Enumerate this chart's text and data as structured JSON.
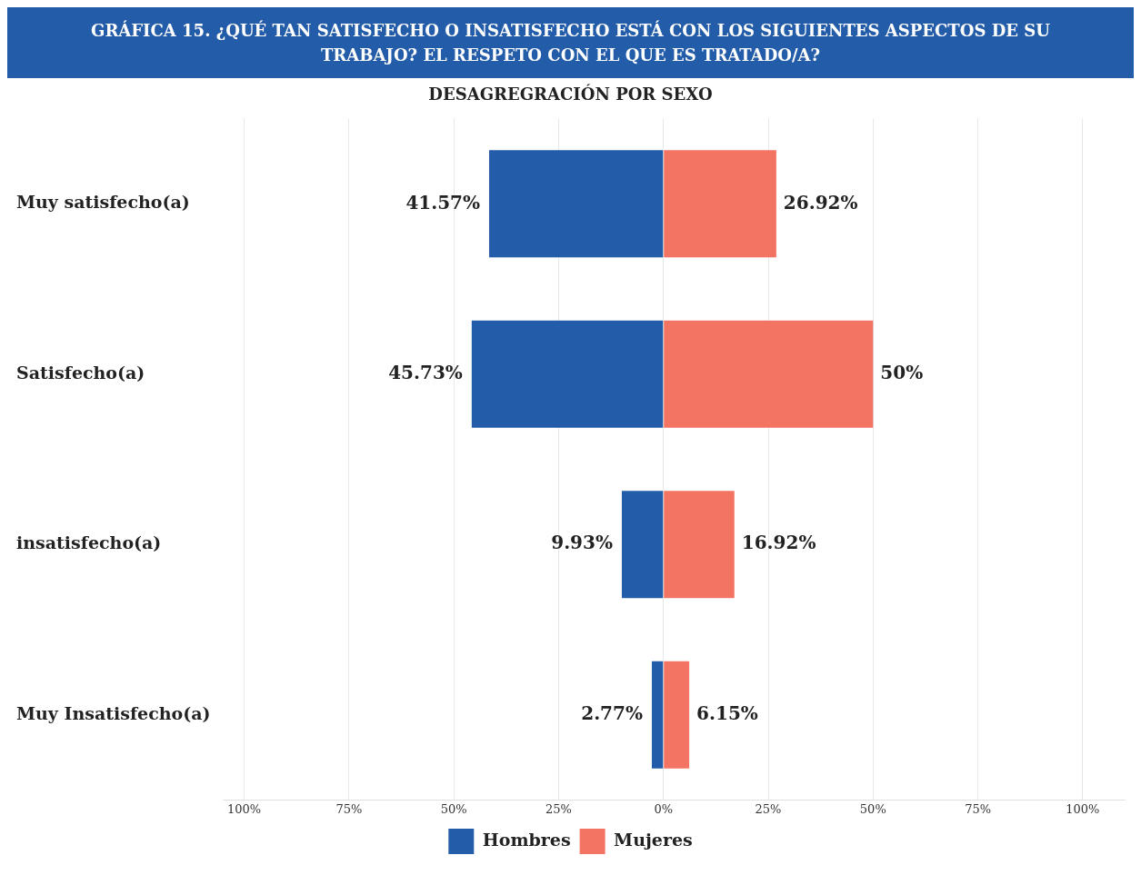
{
  "chart_data": {
    "type": "bar",
    "orientation": "horizontal",
    "title": "GRÁFICA 15. ¿QUÉ TAN SATISFECHO O INSATISFECHO ESTÁ CON LOS SIGUIENTES ASPECTOS DE SU TRABAJO? EL RESPETO CON EL QUE ES TRATADO/A?",
    "subtitle": "DESAGREGRACIÓN POR SEXO",
    "categories": [
      "Muy satisfecho(a)",
      "Satisfecho(a)",
      "insatisfecho(a)",
      "Muy Insatisfecho(a)"
    ],
    "series": [
      {
        "name": "Hombres",
        "color": "#235ca8",
        "values": [
          41.57,
          45.73,
          9.93,
          2.77
        ],
        "base": [
          -41.57,
          -45.73,
          -9.93,
          -2.77
        ],
        "value_labels": [
          "41.57%",
          "45.73%",
          "9.93%",
          "2.77%"
        ]
      },
      {
        "name": "Mujeres",
        "color": "#f47463",
        "values": [
          26.92,
          50,
          16.92,
          6.15
        ],
        "base": [
          0,
          0,
          0,
          0
        ],
        "value_labels": [
          "26.92%",
          "50%",
          "16.92%",
          "6.15%"
        ]
      }
    ],
    "xlim": [
      -105,
      110
    ],
    "xticks": [
      {
        "value": -100,
        "label": "100%"
      },
      {
        "value": -75,
        "label": "75%"
      },
      {
        "value": -50,
        "label": "50%"
      },
      {
        "value": -25,
        "label": "25%"
      },
      {
        "value": 0,
        "label": "0%"
      },
      {
        "value": 25,
        "label": "25%"
      },
      {
        "value": 50,
        "label": "50%"
      },
      {
        "value": 75,
        "label": "75%"
      },
      {
        "value": 100,
        "label": "100%"
      }
    ],
    "grid": "x",
    "legend": "bottom"
  }
}
